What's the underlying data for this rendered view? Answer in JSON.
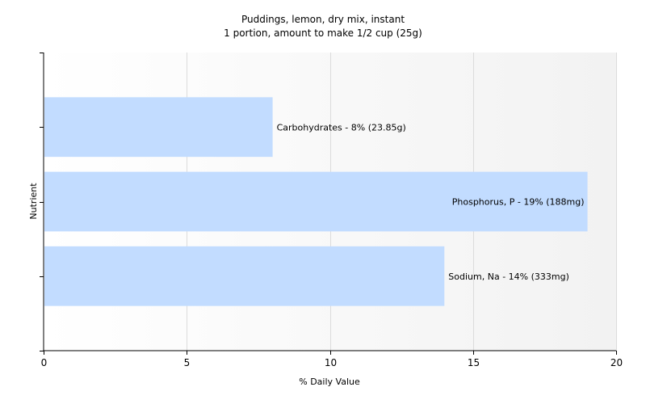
{
  "chart_data": {
    "type": "bar",
    "orientation": "horizontal",
    "title": "Puddings, lemon, dry mix, instant",
    "subtitle": "1 portion, amount to make 1/2 cup (25g)",
    "xlabel": "% Daily Value",
    "ylabel": "Nutrient",
    "xlim": [
      0,
      20
    ],
    "xticks": [
      0,
      5,
      10,
      15,
      20
    ],
    "grid": true,
    "legend": "none",
    "bar_color": "#c2dcff",
    "categories": [
      "Carbohydrates",
      "Phosphorus, P",
      "Sodium, Na"
    ],
    "values": [
      8,
      19,
      14
    ],
    "data_labels": [
      "Carbohydrates - 8% (23.85g)",
      "Phosphorus, P - 19% (188mg)",
      "Sodium, Na - 14% (333mg)"
    ]
  }
}
